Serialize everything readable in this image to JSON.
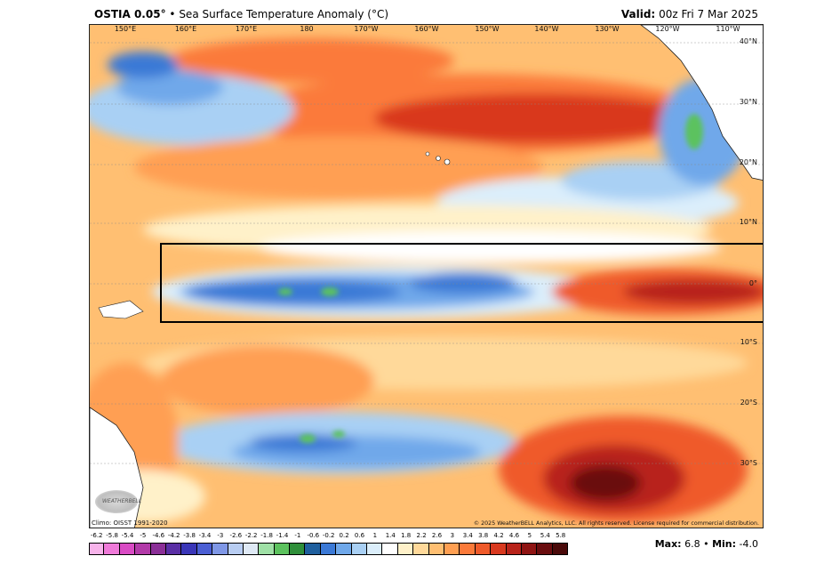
{
  "header": {
    "product": "OSTIA 0.05",
    "degree_mark": "°",
    "bullet": "•",
    "variable": "Sea Surface Temperature Anomaly (°C)",
    "valid_label": "Valid:",
    "valid_time": "00z Fri 7 Mar 2025"
  },
  "map": {
    "lon_labels": [
      "150°E",
      "160°E",
      "170°E",
      "180",
      "170°W",
      "160°W",
      "150°W",
      "140°W",
      "130°W",
      "120°W",
      "110°W"
    ],
    "lat_labels": [
      "40°N",
      "30°N",
      "20°N",
      "10°N",
      "0°",
      "10°S",
      "20°S",
      "30°S"
    ],
    "climo_note": "Climo: OISST 1991-2020",
    "copyright": "© 2025 WeatherBELL Analytics, LLC. All rights reserved. License required for commercial distribution.",
    "logo_text": "WEATHERBELL",
    "highlight_box": "equatorial Pacific region outlined"
  },
  "colorbar": {
    "ticks": [
      "-6.2",
      "-5.8",
      "-5.4",
      "-5",
      "-4.6",
      "-4.2",
      "-3.8",
      "-3.4",
      "-3",
      "-2.6",
      "-2.2",
      "-1.8",
      "-1.4",
      "-1",
      "-0.6",
      "-0.2",
      "0.2",
      "0.6",
      "1",
      "1.4",
      "1.8",
      "2.2",
      "2.6",
      "3",
      "3.4",
      "3.8",
      "4.2",
      "4.6",
      "5",
      "5.4",
      "5.8"
    ],
    "colors": [
      "#f7b3ea",
      "#ef7ad9",
      "#d94bc4",
      "#b23aa8",
      "#8b2f97",
      "#5a2fa5",
      "#3a36b8",
      "#4b5fd4",
      "#7f97e6",
      "#b8cdf2",
      "#dfe9f5",
      "#9fe0a6",
      "#5cc25e",
      "#2f8f3a",
      "#1f5f9e",
      "#3b79d6",
      "#6fa8ea",
      "#a9d0f4",
      "#dbeefb",
      "#ffffff",
      "#fff1c9",
      "#ffd99a",
      "#ffbf72",
      "#ff9f52",
      "#fb7a3a",
      "#ef5a2a",
      "#d9391f",
      "#b8231a",
      "#8f1413",
      "#6a0d0f",
      "#4a0a0a"
    ],
    "max_label": "Max:",
    "max_value": "6.8",
    "min_label": "Min:",
    "min_value": "-4.0"
  }
}
